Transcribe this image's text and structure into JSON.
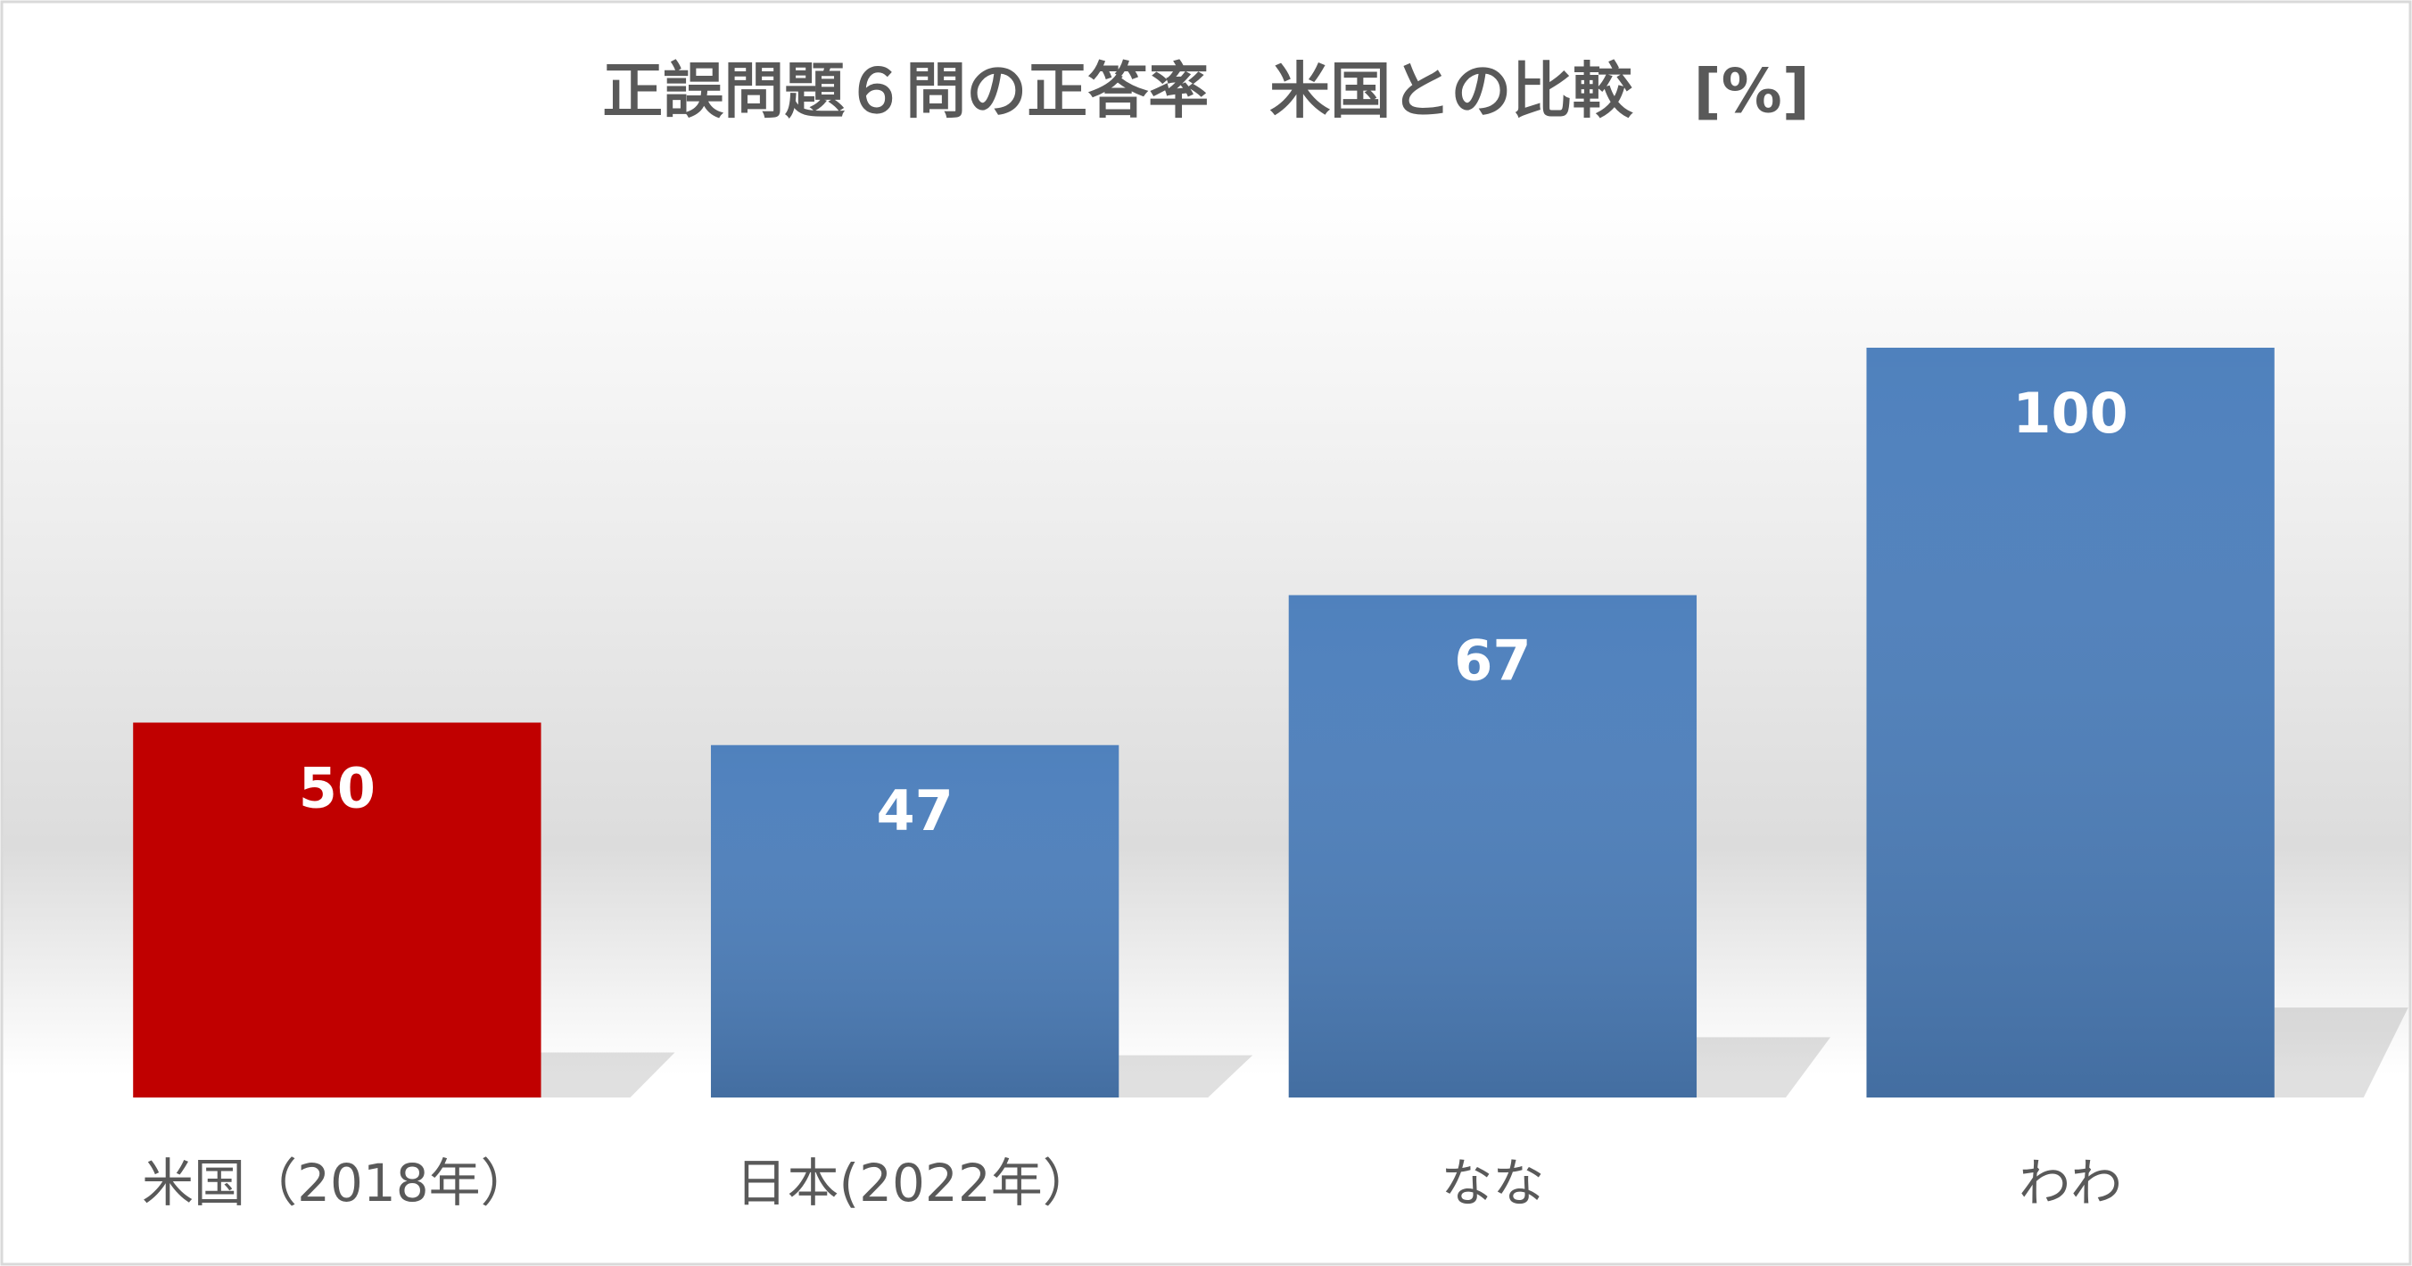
{
  "chart_data": {
    "type": "bar",
    "title": "正誤問題６問の正答率　米国との比較　[%]",
    "categories": [
      "米国（2018年）",
      "日本(2022年）",
      "なな",
      "わわ"
    ],
    "values": [
      50,
      47,
      67,
      100
    ],
    "colors": [
      "#c00000",
      "#4f81bd",
      "#4f81bd",
      "#4f81bd"
    ],
    "ylim": [
      0,
      100
    ]
  }
}
